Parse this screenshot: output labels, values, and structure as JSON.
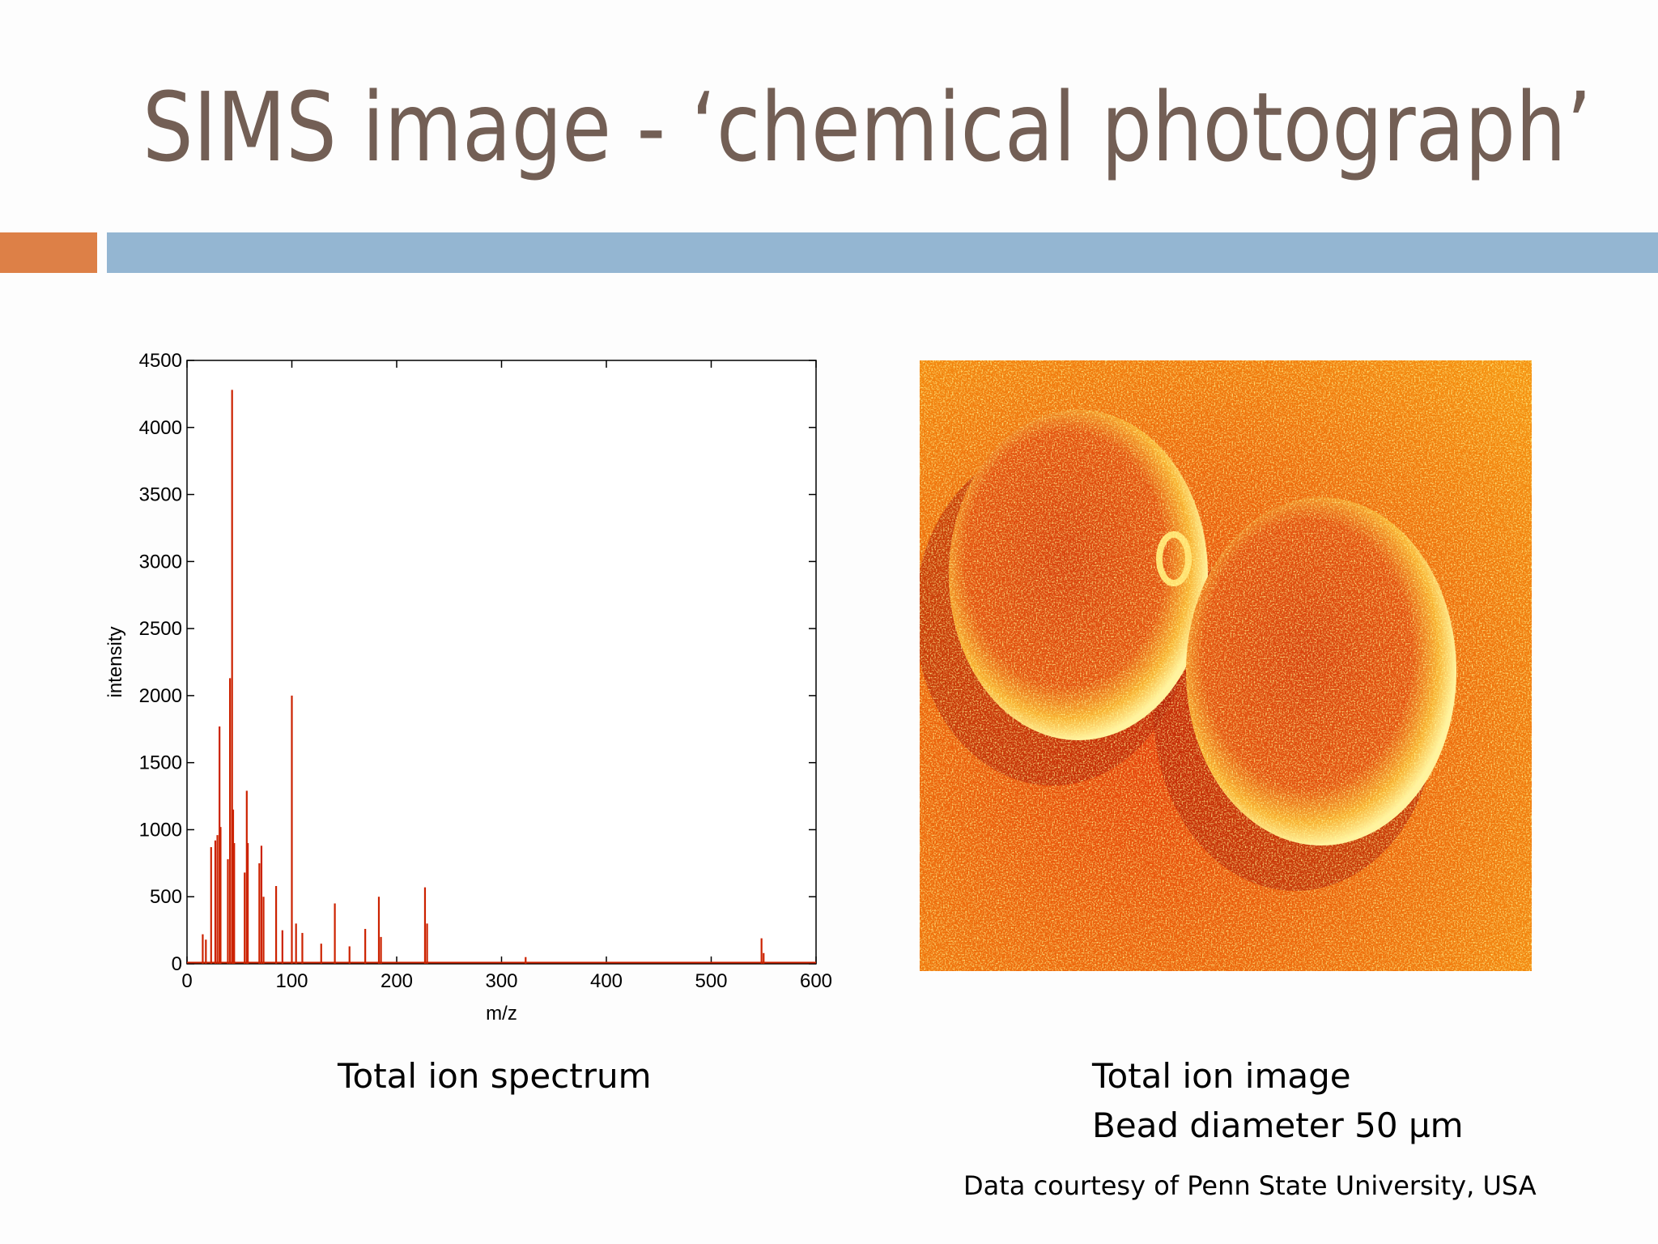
{
  "slide": {
    "title": "SIMS image - ‘chemical photograph’",
    "caption_spectrum": "Total ion spectrum",
    "caption_image": [
      "Total ion image",
      "Bead diameter 50 µm"
    ],
    "credit": "Data courtesy of Penn State University, USA"
  },
  "chart_data": {
    "type": "stem",
    "color": "#cc2200",
    "x_label": "m/z",
    "y_label": "intensity",
    "x": [
      15,
      18,
      23,
      27,
      29,
      31,
      32,
      39,
      41,
      43,
      44,
      45,
      55,
      57,
      58,
      69,
      71,
      73,
      85,
      91,
      100,
      104,
      110,
      128,
      141,
      155,
      170,
      183,
      185,
      227,
      229,
      323,
      548,
      550
    ],
    "values": [
      220,
      180,
      870,
      920,
      960,
      1770,
      1020,
      780,
      2130,
      4280,
      1150,
      900,
      680,
      1290,
      900,
      750,
      880,
      500,
      580,
      250,
      2000,
      300,
      230,
      150,
      450,
      130,
      260,
      500,
      200,
      570,
      300,
      50,
      190,
      80
    ],
    "xlim": [
      0,
      600
    ],
    "xticks": [
      0,
      100,
      200,
      300,
      400,
      500,
      600
    ],
    "ylim": [
      0,
      4500
    ],
    "yticks": [
      0,
      500,
      1000,
      1500,
      2000,
      2500,
      3000,
      3500,
      4000,
      4500
    ]
  }
}
